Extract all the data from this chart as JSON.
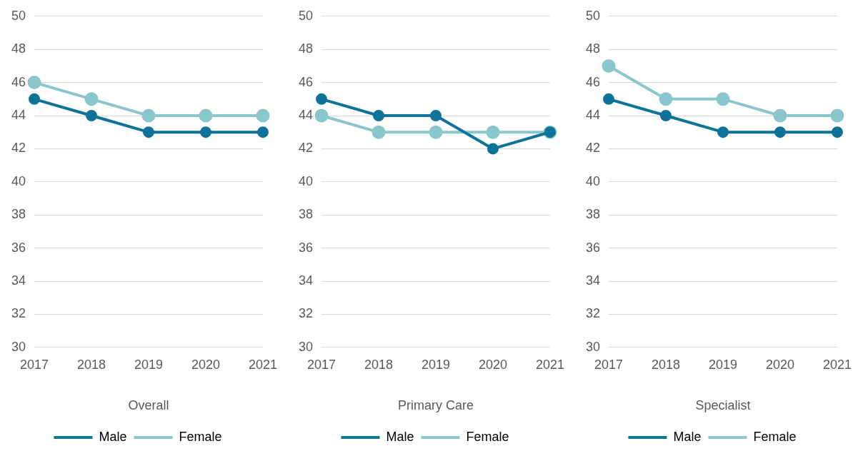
{
  "chart_data": [
    {
      "type": "line",
      "xlabel": "Overall",
      "categories": [
        "2017",
        "2018",
        "2019",
        "2020",
        "2021"
      ],
      "series": [
        {
          "name": "Male",
          "color": "#0e7399",
          "values": [
            45,
            44,
            43,
            43,
            43
          ]
        },
        {
          "name": "Female",
          "color": "#8ac7cd",
          "values": [
            46,
            45,
            44,
            44,
            44
          ]
        }
      ],
      "ylim": [
        30,
        50
      ],
      "yticks": [
        30,
        32,
        34,
        36,
        38,
        40,
        42,
        44,
        46,
        48,
        50
      ],
      "grid": "y",
      "legend": "bottom",
      "marker": "circle"
    },
    {
      "type": "line",
      "xlabel": "Primary Care",
      "categories": [
        "2017",
        "2018",
        "2019",
        "2020",
        "2021"
      ],
      "series": [
        {
          "name": "Male",
          "color": "#0e7399",
          "values": [
            45,
            44,
            44,
            42,
            43
          ]
        },
        {
          "name": "Female",
          "color": "#8ac7cd",
          "values": [
            44,
            43,
            43,
            43,
            43
          ]
        }
      ],
      "ylim": [
        30,
        50
      ],
      "yticks": [
        30,
        32,
        34,
        36,
        38,
        40,
        42,
        44,
        46,
        48,
        50
      ],
      "grid": "y",
      "legend": "bottom",
      "marker": "circle"
    },
    {
      "type": "line",
      "xlabel": "Specialist",
      "categories": [
        "2017",
        "2018",
        "2019",
        "2020",
        "2021"
      ],
      "series": [
        {
          "name": "Male",
          "color": "#0e7399",
          "values": [
            45,
            44,
            43,
            43,
            43
          ]
        },
        {
          "name": "Female",
          "color": "#8ac7cd",
          "values": [
            47,
            45,
            45,
            44,
            44
          ]
        }
      ],
      "ylim": [
        30,
        50
      ],
      "yticks": [
        30,
        32,
        34,
        36,
        38,
        40,
        42,
        44,
        46,
        48,
        50
      ],
      "grid": "y",
      "legend": "bottom",
      "marker": "circle"
    }
  ]
}
